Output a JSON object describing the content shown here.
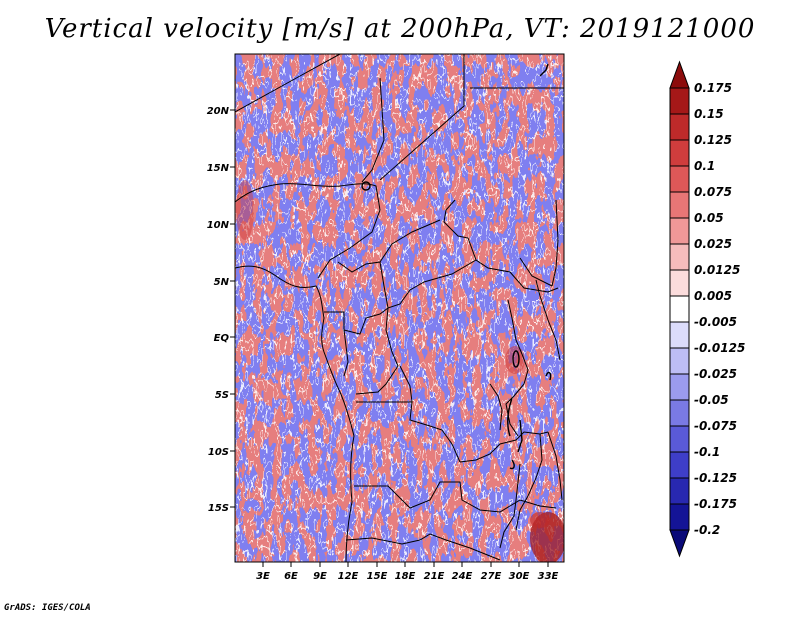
{
  "title": "Vertical velocity [m/s] at 200hPa, VT: 2019121000",
  "credit": "GrADS: IGES/COLA",
  "map": {
    "variable": "Vertical velocity",
    "units": "m/s",
    "level": "200hPa",
    "valid_time": "2019121000",
    "region": "Central Africa",
    "lat_labels": [
      "20N",
      "15N",
      "10N",
      "5N",
      "EQ",
      "5S",
      "10S",
      "15S"
    ],
    "lon_labels": [
      "3E",
      "6E",
      "9E",
      "12E",
      "15E",
      "18E",
      "21E",
      "24E",
      "27E",
      "30E",
      "33E"
    ]
  },
  "colorbar": {
    "labels": [
      "0.175",
      "0.15",
      "0.125",
      "0.1",
      "0.075",
      "0.05",
      "0.025",
      "0.0125",
      "0.005",
      "-0.005",
      "-0.0125",
      "-0.025",
      "-0.05",
      "-0.075",
      "-0.1",
      "-0.125",
      "-0.175",
      "-0.2"
    ],
    "colors": [
      "#8c0c0c",
      "#a51818",
      "#be2a2a",
      "#d03d3d",
      "#de5858",
      "#e87676",
      "#f09898",
      "#f6bcbc",
      "#fbdcdc",
      "#ffffff",
      "#dcdcfb",
      "#bdbdf5",
      "#9b9bee",
      "#7a7ae4",
      "#5a5ad8",
      "#3e3ec8",
      "#2828b0",
      "#141496",
      "#0a0a78"
    ]
  }
}
